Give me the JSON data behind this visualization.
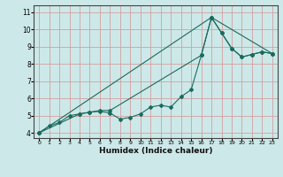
{
  "xlabel": "Humidex (Indice chaleur)",
  "background_color": "#cde8e8",
  "grid_color": "#d4a0a0",
  "line_color": "#1a6b5e",
  "xlim": [
    -0.5,
    23.5
  ],
  "ylim": [
    3.7,
    11.4
  ],
  "xticks": [
    0,
    1,
    2,
    3,
    4,
    5,
    6,
    7,
    8,
    9,
    10,
    11,
    12,
    13,
    14,
    15,
    16,
    17,
    18,
    19,
    20,
    21,
    22,
    23
  ],
  "yticks": [
    4,
    5,
    6,
    7,
    8,
    9,
    10,
    11
  ],
  "line1_x": [
    0,
    1,
    2,
    3,
    4,
    5,
    6,
    7,
    8,
    9,
    10,
    11,
    12,
    13,
    14,
    15,
    16,
    17,
    18,
    19,
    20,
    21,
    22,
    23
  ],
  "line1_y": [
    4.0,
    4.4,
    4.6,
    5.0,
    5.1,
    5.2,
    5.25,
    5.15,
    4.8,
    4.9,
    5.1,
    5.5,
    5.6,
    5.5,
    6.1,
    6.5,
    8.5,
    10.7,
    9.8,
    8.9,
    8.4,
    8.55,
    8.7,
    8.6
  ],
  "line2_x": [
    0,
    4,
    5,
    6,
    7,
    16,
    17,
    18,
    19,
    20,
    21,
    22,
    23
  ],
  "line2_y": [
    4.0,
    5.1,
    5.2,
    5.3,
    5.3,
    8.5,
    10.7,
    9.8,
    8.9,
    8.4,
    8.55,
    8.7,
    8.6
  ],
  "line3_x": [
    0,
    17,
    23
  ],
  "line3_y": [
    4.0,
    10.7,
    8.6
  ]
}
